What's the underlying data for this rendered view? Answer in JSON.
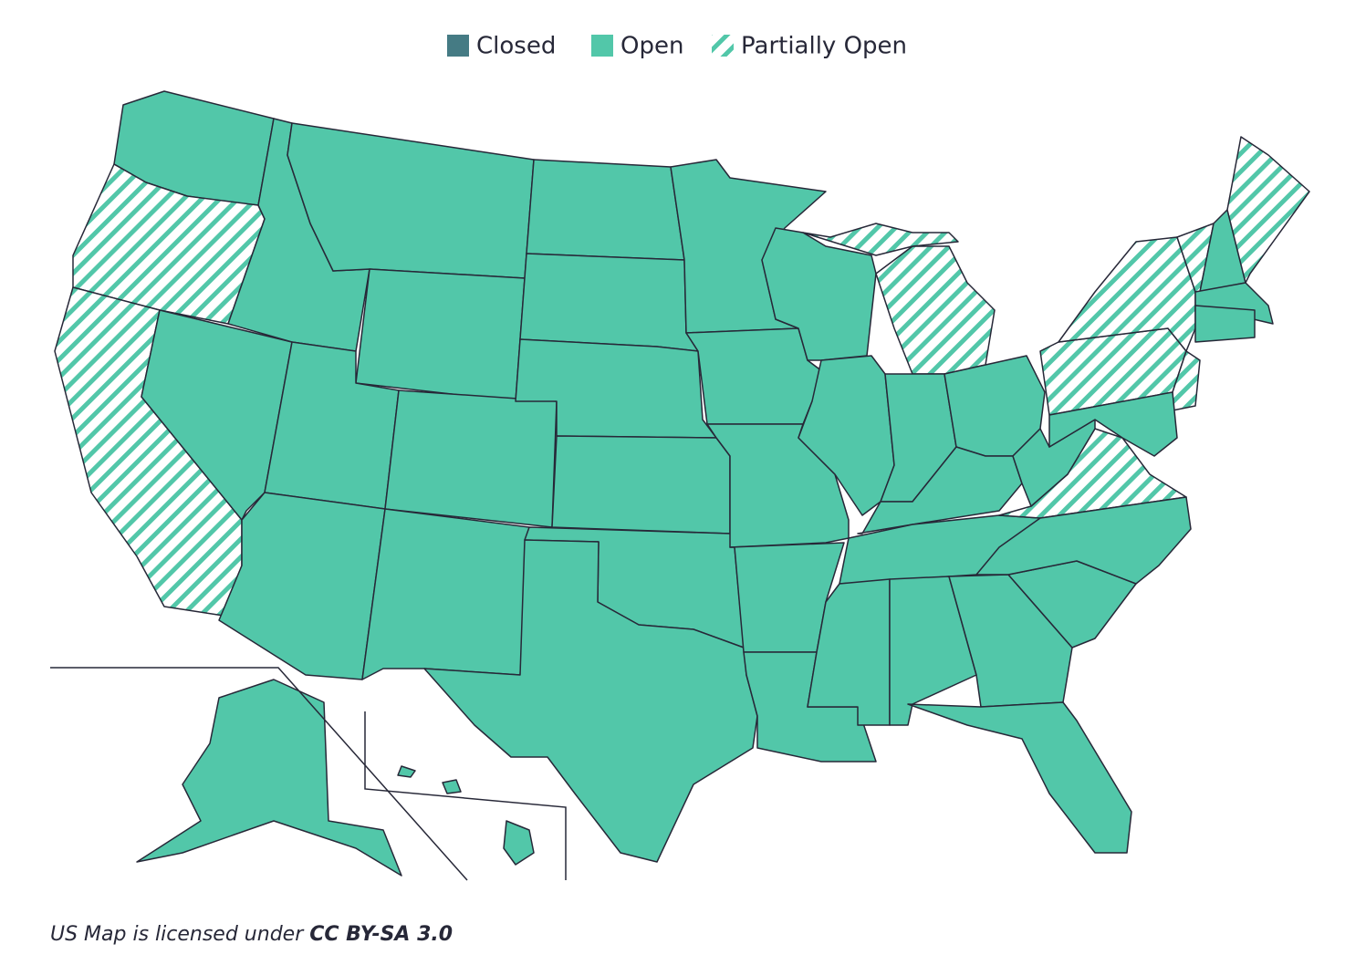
{
  "legend": {
    "items": [
      {
        "label": "Closed",
        "color": "#457b84"
      },
      {
        "label": "Open",
        "color": "#52c7a9"
      },
      {
        "label": "Partially Open",
        "color": "#52c7a9",
        "pattern": "hatch"
      }
    ]
  },
  "map": {
    "stroke": "#272838",
    "region_status": [
      1,
      2,
      2,
      1,
      1,
      1,
      1,
      1,
      1,
      1,
      1,
      1,
      1,
      1,
      1,
      1,
      1,
      1,
      1,
      1,
      1,
      1,
      1,
      2,
      2,
      1,
      1,
      1,
      1,
      1,
      1,
      1,
      1,
      1,
      2,
      1,
      2,
      2,
      2,
      1,
      2,
      1,
      2,
      1,
      1,
      1,
      1,
      1,
      1,
      1,
      1
    ]
  },
  "footer": {
    "text": "US Map is licensed under",
    "license": "CC BY-SA 3.0"
  }
}
